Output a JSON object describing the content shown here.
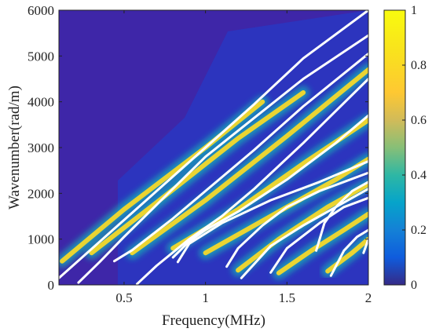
{
  "chart_data": {
    "type": "heatmap",
    "title": "",
    "xlabel": "Frequency(MHz)",
    "ylabel": "Wavenumber(rad/m)",
    "xlim": [
      0.1,
      2.0
    ],
    "ylim": [
      0,
      6000
    ],
    "x_ticks": [
      "0.5",
      "1",
      "1.5",
      "2"
    ],
    "x_tick_values": [
      0.5,
      1.0,
      1.5,
      2.0
    ],
    "y_ticks": [
      "0",
      "1000",
      "2000",
      "3000",
      "4000",
      "5000",
      "6000"
    ],
    "y_tick_values": [
      0,
      1000,
      2000,
      3000,
      4000,
      5000,
      6000
    ],
    "colorbar": {
      "range": [
        0,
        1
      ],
      "ticks": [
        "0",
        "0.2",
        "0.4",
        "0.6",
        "0.8",
        "1"
      ],
      "tick_values": [
        0,
        0.2,
        0.4,
        0.6,
        0.8,
        1.0
      ],
      "colormap": "parula"
    },
    "background_color": "#3e26a8",
    "ridges": [
      {
        "points": [
          [
            0.12,
            520
          ],
          [
            0.5,
            1650
          ],
          [
            1.0,
            3000
          ],
          [
            1.35,
            4000
          ]
        ]
      },
      {
        "points": [
          [
            0.3,
            700
          ],
          [
            0.7,
            1800
          ],
          [
            1.2,
            3200
          ],
          [
            1.6,
            4200
          ]
        ]
      },
      {
        "points": [
          [
            0.55,
            700
          ],
          [
            1.0,
            1850
          ],
          [
            1.5,
            3250
          ],
          [
            2.0,
            4700
          ]
        ]
      },
      {
        "points": [
          [
            0.8,
            800
          ],
          [
            1.2,
            1650
          ],
          [
            1.6,
            2650
          ],
          [
            2.0,
            3600
          ]
        ]
      },
      {
        "points": [
          [
            1.0,
            700
          ],
          [
            1.4,
            1500
          ],
          [
            1.8,
            2300
          ],
          [
            2.0,
            2750
          ]
        ]
      },
      {
        "points": [
          [
            1.2,
            320
          ],
          [
            1.45,
            1000
          ],
          [
            1.75,
            1700
          ],
          [
            2.0,
            2200
          ]
        ]
      },
      {
        "points": [
          [
            1.45,
            260
          ],
          [
            1.65,
            750
          ],
          [
            1.85,
            1200
          ],
          [
            2.0,
            1550
          ]
        ]
      },
      {
        "points": [
          [
            1.75,
            300
          ],
          [
            1.9,
            700
          ],
          [
            2.0,
            1000
          ]
        ]
      }
    ],
    "series": [
      {
        "points": [
          [
            0.1,
            150
          ],
          [
            0.4,
            1100
          ],
          [
            0.7,
            2050
          ],
          [
            1.0,
            3000
          ],
          [
            1.3,
            3950
          ],
          [
            1.6,
            4950
          ],
          [
            2.0,
            6000
          ]
        ]
      },
      {
        "points": [
          [
            0.22,
            50
          ],
          [
            0.35,
            500
          ],
          [
            0.5,
            1050
          ],
          [
            0.7,
            1750
          ],
          [
            1.0,
            2800
          ],
          [
            1.3,
            3650
          ],
          [
            1.6,
            4500
          ],
          [
            2.0,
            5450
          ]
        ]
      },
      {
        "points": [
          [
            0.44,
            520
          ],
          [
            0.55,
            760
          ],
          [
            0.8,
            1450
          ],
          [
            1.0,
            2050
          ],
          [
            1.3,
            2950
          ],
          [
            1.6,
            3900
          ],
          [
            2.0,
            5050
          ]
        ]
      },
      {
        "points": [
          [
            0.58,
            20
          ],
          [
            0.7,
            420
          ],
          [
            0.9,
            1000
          ],
          [
            1.1,
            1500
          ],
          [
            1.3,
            2100
          ],
          [
            1.6,
            3100
          ],
          [
            2.0,
            4500
          ]
        ]
      },
      {
        "points": [
          [
            0.8,
            600
          ],
          [
            0.9,
            950
          ],
          [
            1.0,
            1200
          ],
          [
            1.2,
            1600
          ],
          [
            1.5,
            2300
          ],
          [
            1.8,
            3100
          ],
          [
            2.0,
            3700
          ]
        ]
      },
      {
        "points": [
          [
            0.83,
            500
          ],
          [
            0.9,
            900
          ],
          [
            1.1,
            1350
          ],
          [
            1.4,
            1850
          ],
          [
            1.7,
            2250
          ],
          [
            2.0,
            2700
          ]
        ]
      },
      {
        "points": [
          [
            1.13,
            400
          ],
          [
            1.2,
            800
          ],
          [
            1.35,
            1300
          ],
          [
            1.5,
            1700
          ],
          [
            1.7,
            2050
          ],
          [
            2.0,
            2450
          ]
        ]
      },
      {
        "points": [
          [
            1.22,
            150
          ],
          [
            1.4,
            850
          ],
          [
            1.6,
            1300
          ],
          [
            1.8,
            1700
          ],
          [
            2.0,
            2100
          ]
        ]
      },
      {
        "points": [
          [
            1.4,
            270
          ],
          [
            1.5,
            800
          ],
          [
            1.7,
            1350
          ],
          [
            1.85,
            1700
          ],
          [
            2.0,
            1900
          ]
        ]
      },
      {
        "points": [
          [
            1.68,
            750
          ],
          [
            1.73,
            1350
          ],
          [
            1.8,
            1700
          ],
          [
            1.9,
            2050
          ],
          [
            2.0,
            2250
          ]
        ]
      },
      {
        "points": [
          [
            1.77,
            200
          ],
          [
            1.85,
            750
          ],
          [
            1.93,
            1050
          ],
          [
            2.0,
            1200
          ]
        ]
      },
      {
        "points": [
          [
            1.97,
            700
          ],
          [
            2.0,
            1000
          ]
        ]
      }
    ]
  }
}
